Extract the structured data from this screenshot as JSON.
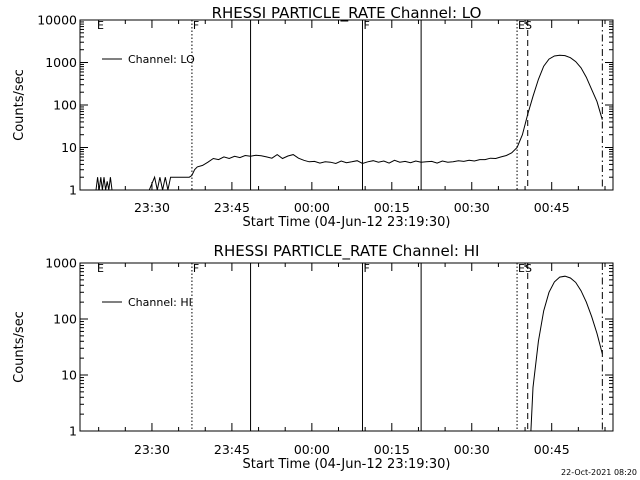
{
  "chart_data": [
    {
      "type": "line",
      "title": "RHESSI PARTICLE_RATE Channel: LO",
      "xlabel": "Start Time (04-Jun-12 23:19:30)",
      "ylabel": "Counts/sec",
      "yscale": "log",
      "ylim": [
        1,
        10000
      ],
      "y_ticks": [
        "1",
        "10",
        "100",
        "1000",
        "10000"
      ],
      "x_ticks": [
        "23:30",
        "23:45",
        "00:00",
        "00:15",
        "00:30",
        "00:45"
      ],
      "xlim_min": [
        -3,
        97
      ],
      "legend": {
        "label": "Channel: LO",
        "position": "top-left"
      },
      "flags": [
        {
          "label": "E",
          "x_min": 0
        },
        {
          "label": "F",
          "x_min": 18
        },
        {
          "label": "F",
          "x_min": 50
        },
        {
          "label": "ES",
          "x_min": 79
        }
      ],
      "vlines": [
        {
          "x_min": 18,
          "style": "dotted"
        },
        {
          "x_min": 29,
          "style": "solid"
        },
        {
          "x_min": 50,
          "style": "solid"
        },
        {
          "x_min": 61,
          "style": "solid"
        },
        {
          "x_min": 79,
          "style": "dotted"
        },
        {
          "x_min": 81,
          "style": "dashed"
        },
        {
          "x_min": 95,
          "style": "dashdot"
        }
      ],
      "series": [
        {
          "name": "Channel: LO",
          "x": [
            0,
            0.3,
            0.6,
            0.9,
            1.2,
            1.5,
            1.8,
            2.1,
            2.4,
            2.7,
            3,
            4,
            6,
            8,
            10,
            11,
            11.5,
            12,
            12.5,
            13,
            13.5,
            14,
            14.5,
            15,
            15.5,
            16,
            16.5,
            17,
            17.5,
            18,
            18.5,
            19,
            20,
            21,
            22,
            23,
            24,
            25,
            26,
            27,
            28,
            29,
            30,
            31,
            32,
            33,
            34,
            35,
            36,
            37,
            38,
            39,
            40,
            41,
            42,
            43,
            44,
            45,
            46,
            47,
            48,
            49,
            50,
            51,
            52,
            53,
            54,
            55,
            56,
            57,
            58,
            59,
            60,
            61,
            62,
            63,
            64,
            65,
            66,
            67,
            68,
            69,
            70,
            71,
            72,
            73,
            74,
            75,
            76,
            77,
            78,
            79,
            80,
            81,
            82,
            83,
            84,
            85,
            86,
            87,
            88,
            89,
            90,
            91,
            92,
            93,
            94,
            95
          ],
          "values": [
            1,
            2,
            1,
            2,
            1,
            2,
            1,
            1.6,
            1,
            2,
            1,
            1,
            1,
            1,
            1,
            2,
            1,
            2,
            1,
            2,
            1,
            2,
            2,
            2,
            2,
            2,
            2,
            2,
            2,
            2.2,
            3,
            3.5,
            3.8,
            4.5,
            5.5,
            5.2,
            6,
            5.5,
            6.2,
            5.8,
            6.5,
            6.2,
            6.6,
            6.4,
            6,
            5.6,
            6.8,
            5.5,
            6.3,
            6.8,
            5.6,
            5,
            4.6,
            4.7,
            4.3,
            4.6,
            4.5,
            4.2,
            4.8,
            4.4,
            4.6,
            4.9,
            4.2,
            4.6,
            4.9,
            4.5,
            4.8,
            4.3,
            5,
            4.5,
            4.7,
            4.4,
            4.8,
            4.5,
            4.6,
            4.7,
            4.3,
            4.8,
            4.5,
            4.6,
            4.9,
            4.7,
            5,
            4.8,
            5.2,
            5.2,
            5.6,
            5.5,
            6,
            6.5,
            7.5,
            10,
            20,
            60,
            160,
            400,
            820,
            1200,
            1420,
            1480,
            1450,
            1300,
            1050,
            750,
            450,
            230,
            120,
            45
          ]
        }
      ]
    },
    {
      "type": "line",
      "title": "RHESSI PARTICLE_RATE Channel: HI",
      "xlabel": "Start Time (04-Jun-12 23:19:30)",
      "ylabel": "Counts/sec",
      "yscale": "log",
      "ylim": [
        1,
        1000
      ],
      "y_ticks": [
        "1",
        "10",
        "100",
        "1000"
      ],
      "x_ticks": [
        "23:30",
        "23:45",
        "00:00",
        "00:15",
        "00:30",
        "00:45"
      ],
      "xlim_min": [
        -3,
        97
      ],
      "legend": {
        "label": "Channel: HI",
        "position": "top-left"
      },
      "flags": [
        {
          "label": "E",
          "x_min": 0
        },
        {
          "label": "F",
          "x_min": 18
        },
        {
          "label": "F",
          "x_min": 50
        },
        {
          "label": "ES",
          "x_min": 79
        }
      ],
      "vlines": [
        {
          "x_min": 18,
          "style": "dotted"
        },
        {
          "x_min": 29,
          "style": "solid"
        },
        {
          "x_min": 50,
          "style": "solid"
        },
        {
          "x_min": 61,
          "style": "solid"
        },
        {
          "x_min": 79,
          "style": "dotted"
        },
        {
          "x_min": 81,
          "style": "dashed"
        },
        {
          "x_min": 95,
          "style": "dashdot"
        }
      ],
      "series": [
        {
          "name": "Channel: HI",
          "x": [
            81.6,
            82,
            83,
            84,
            85,
            86,
            87,
            88,
            89,
            90,
            91,
            92,
            93,
            94,
            95
          ],
          "values": [
            1,
            6,
            40,
            140,
            300,
            460,
            560,
            580,
            540,
            450,
            320,
            200,
            110,
            55,
            24
          ]
        }
      ]
    }
  ],
  "footer": {
    "stamp": "22-Oct-2021 08:20"
  }
}
